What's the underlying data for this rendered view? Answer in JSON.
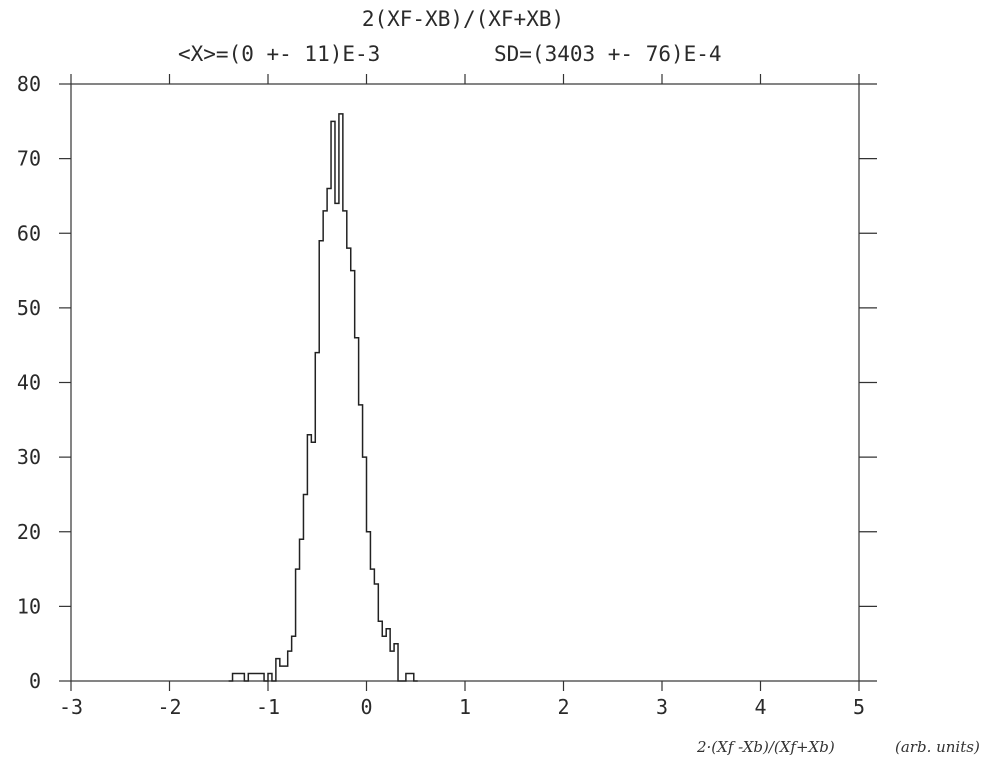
{
  "chart_data": {
    "type": "bar",
    "title": "2(XF-XB)/(XF+XB)",
    "subtitle_mean": "<X>=(0 +- 11)E-3",
    "subtitle_sd": "SD=(3403 +- 76)E-4",
    "xlabel": "2·(Xf -Xb)/(Xf+Xb)",
    "xunits": "(arb. units)",
    "xlim": [
      -3,
      5
    ],
    "ylim": [
      0,
      80
    ],
    "xticks": [
      -3,
      -2,
      -1,
      0,
      1,
      2,
      3,
      4,
      5
    ],
    "xtick_labels": [
      "-3",
      "-2",
      "-1",
      "0",
      "1",
      "2",
      "3",
      "4",
      "5"
    ],
    "yticks": [
      0,
      10,
      20,
      30,
      40,
      50,
      60,
      70,
      80
    ],
    "ytick_labels": [
      "0",
      "10",
      "20",
      "30",
      "40",
      "50",
      "60",
      "70",
      "80"
    ],
    "bin_width": 0.04,
    "bin_edges_start": -1.4,
    "counts": [
      0,
      1,
      1,
      1,
      0,
      1,
      1,
      1,
      1,
      0,
      1,
      0,
      3,
      2,
      2,
      4,
      6,
      15,
      19,
      25,
      33,
      32,
      44,
      59,
      63,
      66,
      75,
      64,
      76,
      63,
      58,
      55,
      46,
      37,
      30,
      20,
      15,
      13,
      8,
      6,
      7,
      4,
      5,
      0,
      0,
      1,
      1,
      0
    ],
    "grid": false,
    "legend": "none"
  }
}
